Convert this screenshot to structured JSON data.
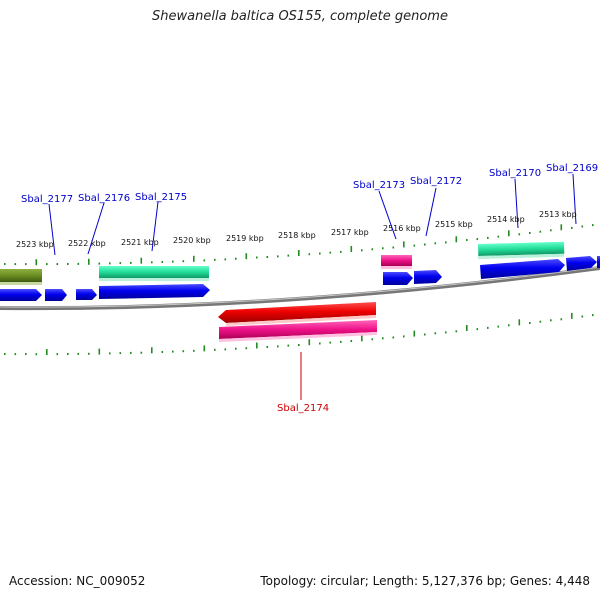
{
  "title": "Shewanella baltica OS155, complete genome",
  "footer": {
    "accession": "Accession: NC_009052",
    "topology": "Topology: circular; Length: 5,127,376 bp; Genes: 4,448"
  },
  "scale": {
    "labels": [
      "2523 kbp",
      "2522 kbp",
      "2521 kbp",
      "2520 kbp",
      "2519 kbp",
      "2518 kbp",
      "2517 kbp",
      "2516 kbp",
      "2515 kbp",
      "2514 kbp",
      "2513 kbp"
    ]
  },
  "genes": {
    "upper": [
      {
        "name": "Sbal_2177",
        "color": "#0000cc"
      },
      {
        "name": "Sbal_2176",
        "color": "#0000cc"
      },
      {
        "name": "Sbal_2175",
        "color": "#0000cc"
      },
      {
        "name": "Sbal_2173",
        "color": "#0000cc"
      },
      {
        "name": "Sbal_2172",
        "color": "#0000cc"
      },
      {
        "name": "Sbal_2170",
        "color": "#0000cc"
      },
      {
        "name": "Sbal_2169",
        "color": "#0000cc"
      }
    ],
    "lower": [
      {
        "name": "Sbal_2174",
        "color": "#cc0000"
      }
    ]
  },
  "colors": {
    "backbone": "#888888",
    "ticks": "#228b22",
    "forward_cds": "#0000ee",
    "reverse_cds": "#ee0000",
    "mrna": "#ff3399",
    "teal": "#33ddaa",
    "olive": "#6b8e23"
  }
}
